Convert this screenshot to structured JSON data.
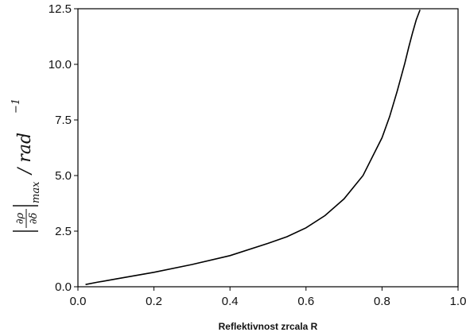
{
  "chart_data": {
    "type": "line",
    "xlabel": "Reflektivnost zrcala R",
    "ylabel": {
      "numerator": "∂ρ",
      "denominator": "∂δ",
      "subscript": "max",
      "unit": "/ rad",
      "exponent": "−1"
    },
    "xlim": [
      0.0,
      1.0
    ],
    "ylim": [
      0.0,
      12.5
    ],
    "x_ticks": [
      "0.0",
      "0.2",
      "0.4",
      "0.6",
      "0.8",
      "1.0"
    ],
    "y_ticks": [
      "0.0",
      "2.5",
      "5.0",
      "7.5",
      "10.0",
      "12.5"
    ],
    "grid": false,
    "series": [
      {
        "color": "#000000",
        "x": [
          0.02,
          0.05,
          0.1,
          0.2,
          0.3,
          0.4,
          0.5,
          0.55,
          0.6,
          0.65,
          0.7,
          0.75,
          0.8,
          0.82,
          0.84,
          0.86,
          0.87,
          0.88,
          0.89,
          0.9
        ],
        "y": [
          0.1,
          0.2,
          0.35,
          0.65,
          1.0,
          1.4,
          1.95,
          2.25,
          2.65,
          3.2,
          3.95,
          5.0,
          6.7,
          7.65,
          8.8,
          10.05,
          10.75,
          11.4,
          12.0,
          12.45
        ]
      }
    ]
  }
}
